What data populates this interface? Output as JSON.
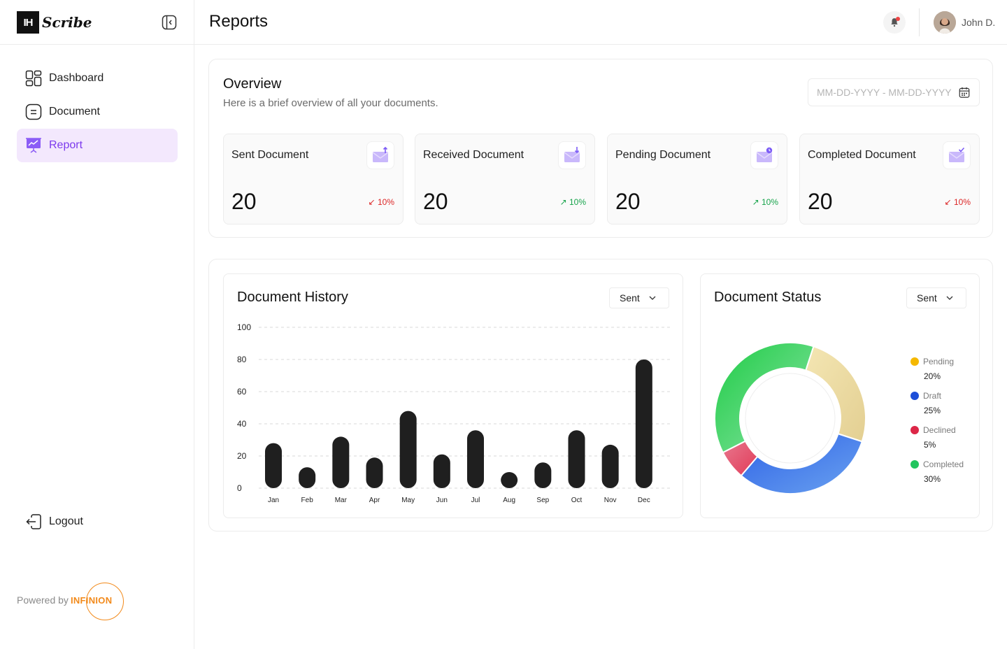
{
  "brand": {
    "mark": "IH",
    "name": "Scribe"
  },
  "sidebar": {
    "items": [
      {
        "label": "Dashboard",
        "icon": "grid-icon",
        "active": false
      },
      {
        "label": "Document",
        "icon": "document-icon",
        "active": false
      },
      {
        "label": "Report",
        "icon": "presentation-chart-icon",
        "active": true
      }
    ],
    "logout_label": "Logout",
    "powered_by": "Powered by",
    "powered_brand": "INFINION"
  },
  "header": {
    "title": "Reports",
    "user_name": "John D."
  },
  "overview": {
    "title": "Overview",
    "subtitle": "Here is a brief overview of all your documents.",
    "date_placeholder": "MM-DD-YYYY - MM-DD-YYYY",
    "stats": [
      {
        "label": "Sent Document",
        "value": "20",
        "change": "10%",
        "trend": "down",
        "icon": "mail-upload-icon"
      },
      {
        "label": "Received Document",
        "value": "20",
        "change": "10%",
        "trend": "up",
        "icon": "mail-download-icon"
      },
      {
        "label": "Pending Document",
        "value": "20",
        "change": "10%",
        "trend": "up",
        "icon": "mail-pending-icon"
      },
      {
        "label": "Completed Document",
        "value": "20",
        "change": "10%",
        "trend": "down",
        "icon": "mail-check-icon"
      }
    ]
  },
  "history": {
    "title": "Document History",
    "filter": "Sent"
  },
  "status": {
    "title": "Document Status",
    "filter": "Sent",
    "legend": [
      {
        "label": "Pending",
        "value": "20%",
        "color": "#f5b800"
      },
      {
        "label": "Draft",
        "value": "25%",
        "color": "#1d4ed8"
      },
      {
        "label": "Declined",
        "value": "5%",
        "color": "#dc2647"
      },
      {
        "label": "Completed",
        "value": "30%",
        "color": "#22c55e"
      }
    ]
  },
  "chart_data": [
    {
      "type": "bar",
      "title": "Document History",
      "categories": [
        "Jan",
        "Feb",
        "Mar",
        "Apr",
        "May",
        "Jun",
        "Jul",
        "Aug",
        "Sep",
        "Oct",
        "Nov",
        "Dec"
      ],
      "values": [
        28,
        13,
        32,
        19,
        48,
        21,
        36,
        10,
        16,
        36,
        27,
        80
      ],
      "ylim": [
        0,
        100
      ],
      "yticks": [
        0,
        20,
        40,
        60,
        80,
        100
      ],
      "grid": true,
      "color": "#1f1f1f"
    },
    {
      "type": "pie",
      "title": "Document Status",
      "donut": true,
      "labels": [
        "Pending",
        "Draft",
        "Declined",
        "Completed"
      ],
      "values": [
        20,
        25,
        5,
        30
      ],
      "colors": [
        "#e8d8a0",
        "#3b76e8",
        "#e4536b",
        "#22c55e"
      ],
      "legend": "right"
    }
  ]
}
